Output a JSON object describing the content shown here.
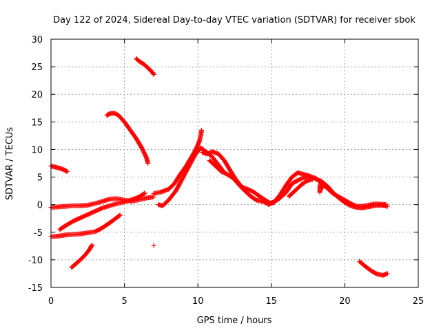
{
  "chart_data": {
    "type": "scatter",
    "title": "Day 122 of 2024, Sidereal Day-to-day VTEC variation (SDTVAR) for receiver sbok",
    "xlabel": "GPS time / hours",
    "ylabel": "SDTVAR / TECUs",
    "xlim": [
      0,
      25
    ],
    "ylim": [
      -15,
      30
    ],
    "xticks": [
      0,
      5,
      10,
      15,
      20,
      25
    ],
    "yticks": [
      -15,
      -10,
      -5,
      0,
      5,
      10,
      15,
      20,
      25,
      30
    ],
    "grid": true,
    "marker": "+",
    "color": "#ff0000",
    "series": [
      {
        "name": "arc-upper-short",
        "points": [
          [
            5.8,
            26.5
          ],
          [
            6.0,
            26.0
          ],
          [
            6.3,
            25.5
          ],
          [
            6.6,
            24.8
          ],
          [
            6.9,
            24.0
          ],
          [
            7.0,
            23.6
          ]
        ]
      },
      {
        "name": "arc-16-to-7",
        "points": [
          [
            3.8,
            16.2
          ],
          [
            4.0,
            16.5
          ],
          [
            4.3,
            16.6
          ],
          [
            4.6,
            16.2
          ],
          [
            5.0,
            15.0
          ],
          [
            5.4,
            13.5
          ],
          [
            5.8,
            12.0
          ],
          [
            6.2,
            10.2
          ],
          [
            6.5,
            8.5
          ],
          [
            6.6,
            7.5
          ]
        ]
      },
      {
        "name": "arc-start-7",
        "points": [
          [
            0.0,
            7.0
          ],
          [
            0.3,
            6.8
          ],
          [
            0.6,
            6.6
          ],
          [
            0.9,
            6.3
          ],
          [
            1.1,
            6.0
          ]
        ]
      },
      {
        "name": "baseline-0",
        "points": [
          [
            0.0,
            -0.5
          ],
          [
            0.5,
            -0.4
          ],
          [
            1.0,
            -0.3
          ],
          [
            1.5,
            -0.2
          ],
          [
            2.0,
            -0.2
          ],
          [
            2.5,
            -0.1
          ],
          [
            3.0,
            0.2
          ],
          [
            3.5,
            0.6
          ],
          [
            4.0,
            1.0
          ],
          [
            4.5,
            1.1
          ],
          [
            5.0,
            0.8
          ],
          [
            5.5,
            0.6
          ],
          [
            6.0,
            0.9
          ],
          [
            6.5,
            1.2
          ],
          [
            7.0,
            1.4
          ]
        ]
      },
      {
        "name": "rising-arc",
        "points": [
          [
            0.6,
            -4.5
          ],
          [
            1.0,
            -3.8
          ],
          [
            1.5,
            -3.0
          ],
          [
            2.0,
            -2.4
          ],
          [
            2.5,
            -1.8
          ],
          [
            3.0,
            -1.2
          ],
          [
            3.5,
            -0.6
          ],
          [
            4.0,
            -0.2
          ],
          [
            4.5,
            0.2
          ],
          [
            5.0,
            0.5
          ],
          [
            5.5,
            0.9
          ],
          [
            6.0,
            1.4
          ],
          [
            6.4,
            2.1
          ]
        ]
      },
      {
        "name": "lower-arc",
        "points": [
          [
            0.0,
            -5.8
          ],
          [
            0.5,
            -5.7
          ],
          [
            1.0,
            -5.5
          ],
          [
            1.5,
            -5.4
          ],
          [
            2.0,
            -5.3
          ],
          [
            2.5,
            -5.1
          ],
          [
            3.0,
            -4.9
          ],
          [
            3.5,
            -4.2
          ],
          [
            4.0,
            -3.3
          ],
          [
            4.5,
            -2.3
          ],
          [
            4.7,
            -1.9
          ]
        ]
      },
      {
        "name": "short-lower-arc",
        "points": [
          [
            1.4,
            -11.4
          ],
          [
            1.7,
            -10.7
          ],
          [
            2.0,
            -10.0
          ],
          [
            2.3,
            -9.2
          ],
          [
            2.6,
            -8.2
          ],
          [
            2.8,
            -7.3
          ]
        ]
      },
      {
        "name": "outlier",
        "points": [
          [
            7.0,
            -7.4
          ]
        ]
      },
      {
        "name": "midday-peak-a",
        "points": [
          [
            7.0,
            2.0
          ],
          [
            7.5,
            2.3
          ],
          [
            8.0,
            2.8
          ],
          [
            8.4,
            3.8
          ],
          [
            8.8,
            5.5
          ],
          [
            9.2,
            7.0
          ],
          [
            9.6,
            8.8
          ],
          [
            9.9,
            10.2
          ],
          [
            10.1,
            11.5
          ],
          [
            10.2,
            12.6
          ],
          [
            10.25,
            13.5
          ]
        ]
      },
      {
        "name": "midday-peak-b",
        "points": [
          [
            7.3,
            0.0
          ],
          [
            7.6,
            -0.2
          ],
          [
            8.0,
            0.8
          ],
          [
            8.5,
            2.5
          ],
          [
            9.0,
            5.0
          ],
          [
            9.4,
            7.0
          ],
          [
            9.8,
            9.0
          ],
          [
            10.2,
            10.3
          ],
          [
            10.6,
            9.5
          ],
          [
            11.0,
            8.6
          ],
          [
            11.4,
            7.2
          ],
          [
            11.8,
            5.8
          ]
        ]
      },
      {
        "name": "afternoon-decline",
        "points": [
          [
            10.3,
            9.5
          ],
          [
            10.6,
            9.2
          ],
          [
            11.0,
            9.6
          ],
          [
            11.4,
            9.2
          ],
          [
            11.8,
            8.0
          ],
          [
            12.2,
            6.2
          ],
          [
            12.6,
            4.5
          ],
          [
            13.0,
            3.2
          ],
          [
            13.4,
            2.8
          ],
          [
            13.8,
            2.3
          ],
          [
            14.2,
            1.5
          ],
          [
            14.6,
            0.8
          ],
          [
            14.9,
            0.3
          ],
          [
            15.2,
            0.4
          ]
        ]
      },
      {
        "name": "afternoon-decline-b",
        "points": [
          [
            10.8,
            8.0
          ],
          [
            11.2,
            7.0
          ],
          [
            11.6,
            6.0
          ],
          [
            12.0,
            5.5
          ],
          [
            12.4,
            4.8
          ],
          [
            12.8,
            3.6
          ],
          [
            13.2,
            2.5
          ],
          [
            13.6,
            1.5
          ],
          [
            14.0,
            0.8
          ],
          [
            14.4,
            0.6
          ],
          [
            14.8,
            0.1
          ]
        ]
      },
      {
        "name": "second-hump",
        "points": [
          [
            14.8,
            0.0
          ],
          [
            15.2,
            0.5
          ],
          [
            15.6,
            1.8
          ],
          [
            16.0,
            3.5
          ],
          [
            16.4,
            5.0
          ],
          [
            16.8,
            5.8
          ],
          [
            17.2,
            5.5
          ],
          [
            17.6,
            5.2
          ],
          [
            18.0,
            4.7
          ],
          [
            18.4,
            4.2
          ],
          [
            18.8,
            3.4
          ],
          [
            19.2,
            2.2
          ],
          [
            19.6,
            1.2
          ],
          [
            20.0,
            0.4
          ],
          [
            20.4,
            -0.2
          ],
          [
            20.8,
            -0.5
          ],
          [
            21.2,
            -0.6
          ],
          [
            21.6,
            -0.4
          ],
          [
            22.0,
            -0.2
          ],
          [
            22.5,
            -0.1
          ],
          [
            22.9,
            -0.3
          ]
        ]
      },
      {
        "name": "second-hump-b",
        "points": [
          [
            15.0,
            0.3
          ],
          [
            15.5,
            1.0
          ],
          [
            16.0,
            2.2
          ],
          [
            16.4,
            3.8
          ],
          [
            16.8,
            4.4
          ],
          [
            17.2,
            4.9
          ],
          [
            17.6,
            5.1
          ],
          [
            18.0,
            4.8
          ],
          [
            18.4,
            4.0
          ],
          [
            18.8,
            3.0
          ],
          [
            19.2,
            2.0
          ],
          [
            19.6,
            1.4
          ],
          [
            20.0,
            0.8
          ],
          [
            20.4,
            0.2
          ],
          [
            20.8,
            -0.3
          ],
          [
            21.2,
            -0.3
          ],
          [
            21.6,
            -0.1
          ],
          [
            22.0,
            0.1
          ],
          [
            22.4,
            0.1
          ],
          [
            22.8,
            0.0
          ]
        ]
      },
      {
        "name": "second-hump-c",
        "points": [
          [
            16.2,
            1.5
          ],
          [
            16.6,
            2.5
          ],
          [
            17.0,
            3.5
          ],
          [
            17.4,
            4.3
          ],
          [
            17.8,
            4.6
          ]
        ]
      },
      {
        "name": "late-arc",
        "points": [
          [
            18.3,
            2.2
          ],
          [
            18.3,
            3.4
          ],
          [
            18.4,
            4.3
          ],
          [
            18.5,
            3.0
          ]
        ]
      },
      {
        "name": "end-arc",
        "points": [
          [
            21.0,
            -10.3
          ],
          [
            21.4,
            -11.2
          ],
          [
            21.8,
            -12.0
          ],
          [
            22.2,
            -12.6
          ],
          [
            22.6,
            -12.8
          ],
          [
            22.9,
            -12.5
          ]
        ]
      }
    ]
  }
}
